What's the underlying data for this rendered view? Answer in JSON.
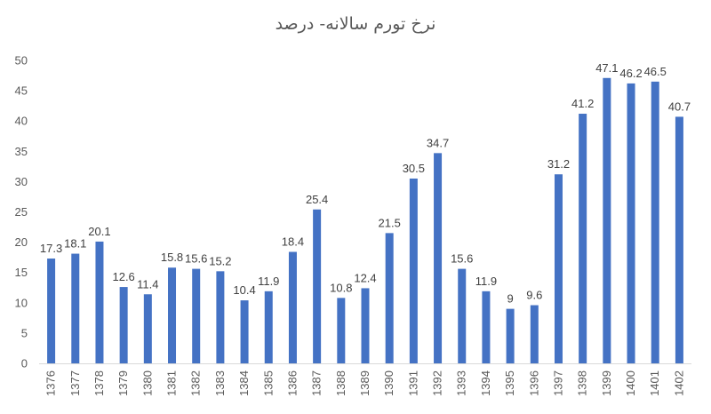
{
  "chart_data": {
    "type": "bar",
    "title": "نرخ تورم سالانه- درصد",
    "xlabel": "",
    "ylabel": "",
    "ylim": [
      0,
      50
    ],
    "yticks": [
      0,
      5,
      10,
      15,
      20,
      25,
      30,
      35,
      40,
      45,
      50
    ],
    "grid": false,
    "legend": "none",
    "bar_color": "#4472C4",
    "categories": [
      "1376",
      "1377",
      "1378",
      "1379",
      "1380",
      "1381",
      "1382",
      "1383",
      "1384",
      "1385",
      "1386",
      "1387",
      "1388",
      "1389",
      "1390",
      "1391",
      "1392",
      "1393",
      "1394",
      "1395",
      "1396",
      "1397",
      "1398",
      "1399",
      "1400",
      "1401",
      "1402"
    ],
    "values": [
      17.3,
      18.1,
      20.1,
      12.6,
      11.4,
      15.8,
      15.6,
      15.2,
      10.4,
      11.9,
      18.4,
      25.4,
      10.8,
      12.4,
      21.5,
      30.5,
      34.7,
      15.6,
      11.9,
      9,
      9.6,
      31.2,
      41.2,
      47.1,
      46.2,
      46.5,
      40.7
    ]
  }
}
